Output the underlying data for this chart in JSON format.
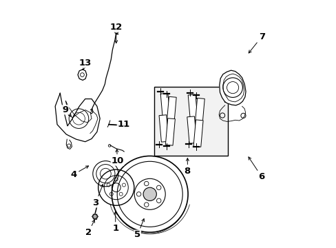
{
  "background_color": "#ffffff",
  "figure_width": 4.89,
  "figure_height": 3.6,
  "dpi": 100,
  "text_color": "#000000",
  "line_color": "#000000",
  "font_size": 9.5,
  "label_offsets": {
    "1": [
      0.285,
      0.075,
      0.285,
      0.155
    ],
    "2": [
      0.175,
      0.06,
      0.205,
      0.12
    ],
    "3": [
      0.205,
      0.18,
      0.238,
      0.265
    ],
    "4": [
      0.115,
      0.295,
      0.185,
      0.335
    ],
    "5": [
      0.375,
      0.05,
      0.405,
      0.125
    ],
    "6": [
      0.88,
      0.285,
      0.82,
      0.375
    ],
    "7": [
      0.88,
      0.855,
      0.82,
      0.78
    ],
    "8": [
      0.578,
      0.308,
      0.578,
      0.372
    ],
    "9": [
      0.082,
      0.558,
      0.112,
      0.522
    ],
    "10": [
      0.293,
      0.35,
      0.29,
      0.408
    ],
    "11": [
      0.318,
      0.498,
      0.296,
      0.493
    ],
    "12": [
      0.288,
      0.892,
      0.288,
      0.818
    ],
    "13": [
      0.162,
      0.748,
      0.152,
      0.712
    ]
  }
}
